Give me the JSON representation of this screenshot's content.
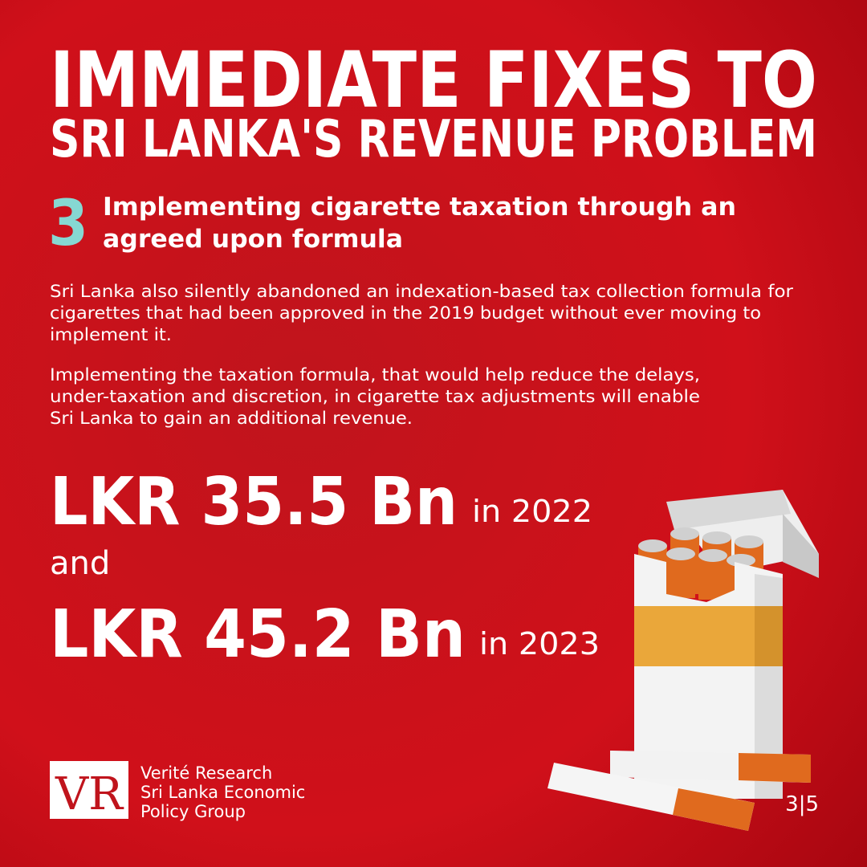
{
  "header": {
    "title_lines": [
      "IMMEDIATE FIXES TO",
      "SRI LANKA'S REVENUE PROBLEM"
    ]
  },
  "section": {
    "number": "3",
    "heading_lines": [
      "Implementing cigarette taxation through an",
      "agreed upon formula"
    ]
  },
  "body": {
    "paragraphs": [
      [
        "Sri Lanka also silently abandoned an indexation-based tax collection formula for",
        "cigarettes that had been approved in the 2019 budget without ever moving to",
        "implement it."
      ],
      [
        "Implementing the taxation formula, that would help reduce the delays,",
        "under-taxation and discretion, in cigarette tax adjustments will enable",
        "Sri Lanka to gain an additional revenue."
      ]
    ]
  },
  "highlights": {
    "first": {
      "amount": "LKR 35.5 Bn",
      "period": "in 2022"
    },
    "connector": "and",
    "second": {
      "amount": "LKR 45.2 Bn",
      "period": "in 2023"
    }
  },
  "footer": {
    "logo": "VR",
    "org_lines": [
      "Verité Research",
      "Sri Lanka Economic",
      "Policy Group"
    ],
    "page": "3|5"
  }
}
